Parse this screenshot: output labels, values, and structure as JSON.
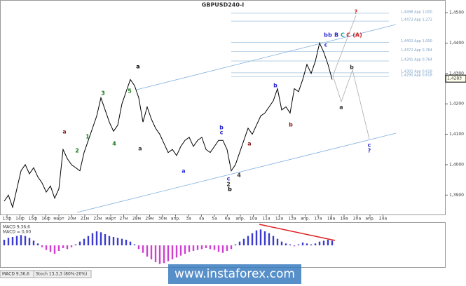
{
  "chart_data": [
    {
      "type": "line",
      "title": "GBPUSD240-I",
      "color": "#000000",
      "values": [
        1.388,
        1.39,
        1.386,
        1.392,
        1.398,
        1.4,
        1.397,
        1.399,
        1.396,
        1.394,
        1.391,
        1.393,
        1.389,
        1.392,
        1.405,
        1.402,
        1.4,
        1.399,
        1.398,
        1.404,
        1.408,
        1.412,
        1.416,
        1.422,
        1.418,
        1.414,
        1.411,
        1.413,
        1.42,
        1.424,
        1.428,
        1.426,
        1.422,
        1.414,
        1.419,
        1.415,
        1.412,
        1.41,
        1.407,
        1.404,
        1.405,
        1.403,
        1.406,
        1.408,
        1.409,
        1.406,
        1.408,
        1.409,
        1.405,
        1.404,
        1.406,
        1.408,
        1.408,
        1.405,
        1.398,
        1.4,
        1.404,
        1.408,
        1.412,
        1.41,
        1.413,
        1.416,
        1.417,
        1.419,
        1.421,
        1.425,
        1.418,
        1.419,
        1.417,
        1.425,
        1.424,
        1.428,
        1.433,
        1.43,
        1.434,
        1.44,
        1.437,
        1.433,
        1.428
      ],
      "xlabels": [
        "13ф",
        "14ф",
        "15ф",
        "16ф",
        "март",
        "20м",
        "21м",
        "22м",
        "март",
        "27м",
        "28м",
        "29м",
        "30м",
        "апр.",
        "3а",
        "4а",
        "5а",
        "6а",
        "апр.",
        "10а",
        "11а",
        "12а",
        "13а",
        "апр.",
        "17а",
        "18а",
        "19а",
        "20а",
        "апр.",
        "24а"
      ],
      "ylim": [
        1.385,
        1.453
      ],
      "yticks": [
        {
          "value": 1.39,
          "label": "1,3900"
        },
        {
          "value": 1.4,
          "label": "1,4000"
        },
        {
          "value": 1.41,
          "label": "1,4100"
        },
        {
          "value": 1.42,
          "label": "1,4200"
        },
        {
          "value": 1.43,
          "label": "1,4300"
        },
        {
          "value": 1.44,
          "label": "1,4400"
        },
        {
          "value": 1.45,
          "label": "1,4500"
        }
      ],
      "last_price": {
        "value": 1.4283,
        "label": "1,4283"
      },
      "fib_levels": [
        {
          "value": 1.4498,
          "label": "1,4498 App 1,000"
        },
        {
          "value": 1.4472,
          "label": "1,4472 App 1,272"
        },
        {
          "value": 1.4402,
          "label": "1,4402 App 1,000"
        },
        {
          "value": 1.4372,
          "label": "1,4372 App 0,764"
        },
        {
          "value": 1.4341,
          "label": "1,4341 App 0,764"
        },
        {
          "value": 1.4302,
          "label": "1,4302 App 0,618"
        },
        {
          "value": 1.429,
          "label": "1,4290 App 0,618"
        }
      ],
      "annotations": [
        {
          "text": "b",
          "color": "#2b2bd0"
        },
        {
          "text": "b",
          "color": "#2b2bd0"
        },
        {
          "text": "B",
          "color": "#2b2bd0"
        },
        {
          "text": "C",
          "color": "#1a9a9a"
        },
        {
          "text": "C",
          "color": "#cc2222"
        },
        {
          "text": "(A)",
          "color": "#cc2222"
        },
        {
          "text": "?",
          "color": "#cc2222"
        },
        {
          "text": "c",
          "color": "#2b2bd0"
        },
        {
          "text": "a",
          "color": "#333333"
        },
        {
          "text": "b",
          "color": "#333333"
        },
        {
          "text": "c",
          "color": "#2b2bd0"
        },
        {
          "text": "?",
          "color": "#2b2bd0"
        },
        {
          "text": "a",
          "color": "#000000"
        },
        {
          "text": "a",
          "color": "#333333"
        },
        {
          "text": "b",
          "color": "#000000"
        },
        {
          "text": "3",
          "color": "#1a7a1a"
        },
        {
          "text": "4",
          "color": "#1a7a1a"
        },
        {
          "text": "5",
          "color": "#1a7a1a"
        },
        {
          "text": "1",
          "color": "#1a7a1a"
        },
        {
          "text": "2",
          "color": "#1a7a1a"
        },
        {
          "text": "a",
          "color": "#2b2bd0"
        },
        {
          "text": "b",
          "color": "#2b2bd0"
        },
        {
          "text": "c",
          "color": "#2b2bd0"
        },
        {
          "text": "c",
          "color": "#2b2bd0"
        },
        {
          "text": "2",
          "color": "#333333"
        },
        {
          "text": "4",
          "color": "#333333"
        },
        {
          "text": "a",
          "color": "#8b1a1a"
        },
        {
          "text": "b",
          "color": "#2b2bd0"
        },
        {
          "text": "b",
          "color": "#8b1a1a"
        },
        {
          "text": "a",
          "color": "#8b1a1a"
        }
      ]
    },
    {
      "type": "macd",
      "title": "MACD 9,36,6",
      "subtitle": "MACD = 0,00",
      "positive_color": "#3a3ad0",
      "negative_color": "#d040d0",
      "ylim": [
        -0.0045,
        0.0045
      ],
      "values": [
        0.0012,
        0.0016,
        0.0018,
        0.002,
        0.0022,
        0.002,
        0.0016,
        0.001,
        0.0004,
        -0.0004,
        -0.001,
        -0.0014,
        -0.0018,
        -0.0012,
        -0.0006,
        -0.0008,
        -0.0004,
        0.0002,
        0.0008,
        0.0014,
        0.002,
        0.0026,
        0.003,
        0.0028,
        0.0024,
        0.002,
        0.0018,
        0.0016,
        0.0014,
        0.0012,
        0.0008,
        0.0002,
        -0.0008,
        -0.0016,
        -0.0024,
        -0.003,
        -0.0036,
        -0.004,
        -0.0038,
        -0.0034,
        -0.003,
        -0.0026,
        -0.0022,
        -0.0018,
        -0.0014,
        -0.0012,
        -0.001,
        -0.0008,
        -0.0006,
        -0.0008,
        -0.001,
        -0.0014,
        -0.0016,
        -0.0012,
        -0.0008,
        0.0002,
        0.0008,
        0.0014,
        0.002,
        0.0026,
        0.0032,
        0.0034,
        0.003,
        0.0026,
        0.002,
        0.0014,
        0.0008,
        0.0004,
        0.0002,
        -0.0002,
        0.0002,
        0.0006,
        0.0004,
        0.0002,
        0.0004,
        0.0008,
        0.001,
        0.0012,
        0.001
      ]
    }
  ],
  "tabs": [
    "MACD 9,36,6",
    "Stoch 13,3,3 (80%-20%)"
  ],
  "watermark": "www.instaforex.com"
}
